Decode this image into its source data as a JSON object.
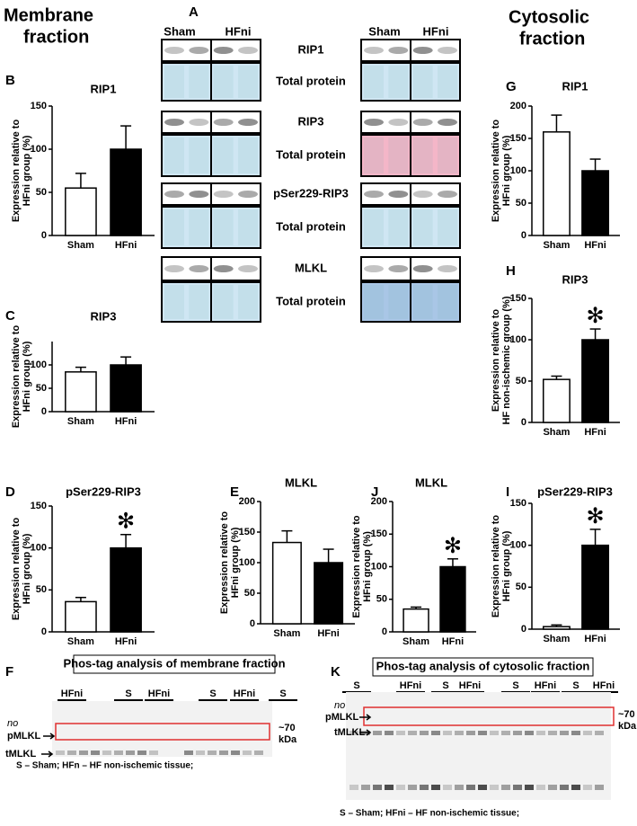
{
  "headers": {
    "membrane": [
      "Membrane",
      "fraction"
    ],
    "cytosolic": [
      "Cytosolic",
      "fraction"
    ]
  },
  "panel_letters": [
    "A",
    "B",
    "C",
    "D",
    "E",
    "F",
    "G",
    "H",
    "I",
    "J",
    "K"
  ],
  "blot_a": {
    "column_labels": [
      "Sham",
      "HFni",
      "Sham",
      "HFni"
    ],
    "row_labels": [
      "RIP1",
      "Total protein",
      "RIP3",
      "Total protein",
      "pSer229-RIP3",
      "Total protein",
      "MLKL",
      "Total protein"
    ]
  },
  "phos_tag": [
    {
      "title": "Phos-tag analysis of membrane fraction",
      "lane_groups": [
        "HFni",
        "S",
        "HFni",
        "S",
        "HFni",
        "S"
      ],
      "markers": [
        "no",
        "pMLKL",
        "tMLKL"
      ],
      "size": [
        "~70",
        "kDa"
      ],
      "footnote": "S – Sham; HFn – HF non-ischemic tissue;"
    },
    {
      "title": "Phos-tag analysis of cytosolic fraction",
      "lane_groups": [
        "S",
        "HFni",
        "S",
        "HFni",
        "S",
        "HFni",
        "S",
        "HFni"
      ],
      "markers": [
        "no",
        "pMLKL",
        "tMLKL"
      ],
      "size": [
        "~70",
        "kDa"
      ],
      "footnote": "S – Sham; HFni – HF non-ischemic tissue;"
    }
  ],
  "chart_data": [
    {
      "type": "bar",
      "title": "RIP1",
      "ylabel": [
        "Expression relative to",
        "HFni group (%)"
      ],
      "categories": [
        "Sham",
        "HFni"
      ],
      "values": [
        55,
        100
      ],
      "errors": [
        17,
        27
      ],
      "colors": [
        "#ffffff",
        "#000000"
      ],
      "ylim": [
        0,
        150
      ],
      "yticks": [
        0,
        50,
        100,
        150
      ]
    },
    {
      "type": "bar",
      "title": "RIP3",
      "ylabel": [
        "Expression relative to",
        "HFni group (%)"
      ],
      "categories": [
        "Sham",
        "HFni"
      ],
      "values": [
        85,
        100
      ],
      "errors": [
        10,
        17
      ],
      "colors": [
        "#ffffff",
        "#000000"
      ],
      "ylim": [
        0,
        150
      ],
      "yticks": [
        0,
        50,
        100
      ]
    },
    {
      "type": "bar",
      "title": "pSer229-RIP3",
      "ylabel": [
        "Expression relative to",
        "HFni group (%)"
      ],
      "categories": [
        "Sham",
        "HFni"
      ],
      "values": [
        36,
        100
      ],
      "errors": [
        5,
        16
      ],
      "colors": [
        "#ffffff",
        "#000000"
      ],
      "ylim": [
        0,
        150
      ],
      "yticks": [
        0,
        50,
        100,
        150
      ],
      "annotation": "✻"
    },
    {
      "type": "bar",
      "title": "MLKL",
      "ylabel": [
        "Expression relative to",
        "HFni group (%)"
      ],
      "categories": [
        "Sham",
        "HFni"
      ],
      "values": [
        133,
        100
      ],
      "errors": [
        19,
        22
      ],
      "colors": [
        "#ffffff",
        "#000000"
      ],
      "ylim": [
        0,
        200
      ],
      "yticks": [
        0,
        50,
        100,
        150,
        200
      ]
    },
    {
      "type": "bar",
      "title": "MLKL",
      "ylabel": [
        "Expression relative to",
        "HFni group (%)"
      ],
      "categories": [
        "Sham",
        "HFni"
      ],
      "values": [
        35,
        100
      ],
      "errors": [
        3,
        12
      ],
      "colors": [
        "#ffffff",
        "#000000"
      ],
      "ylim": [
        0,
        200
      ],
      "yticks": [
        0,
        50,
        100,
        150,
        200
      ],
      "annotation": "✻"
    },
    {
      "type": "bar",
      "title": "pSer229-RIP3",
      "ylabel": [
        "Expression relative to",
        "HFni group (%)"
      ],
      "categories": [
        "Sham",
        "HFni"
      ],
      "values": [
        3,
        100
      ],
      "errors": [
        2,
        19
      ],
      "colors": [
        "#ffffff",
        "#000000"
      ],
      "ylim": [
        0,
        150
      ],
      "yticks": [
        0,
        50,
        100,
        150
      ],
      "annotation": "✻"
    },
    {
      "type": "bar",
      "title": "RIP1",
      "ylabel": [
        "Expression relative to",
        "HFni group (%)"
      ],
      "categories": [
        "Sham",
        "HFni"
      ],
      "values": [
        160,
        100
      ],
      "errors": [
        26,
        18
      ],
      "colors": [
        "#ffffff",
        "#000000"
      ],
      "ylim": [
        0,
        200
      ],
      "yticks": [
        0,
        50,
        100,
        150,
        200
      ]
    },
    {
      "type": "bar",
      "title": "RIP3",
      "ylabel": [
        "Expression relative to",
        "HF non-ischemic group (%)"
      ],
      "categories": [
        "Sham",
        "HFni"
      ],
      "values": [
        52,
        100
      ],
      "errors": [
        4,
        13
      ],
      "colors": [
        "#ffffff",
        "#000000"
      ],
      "ylim": [
        0,
        150
      ],
      "yticks": [
        0,
        50,
        100,
        150
      ],
      "annotation": "✻"
    }
  ]
}
